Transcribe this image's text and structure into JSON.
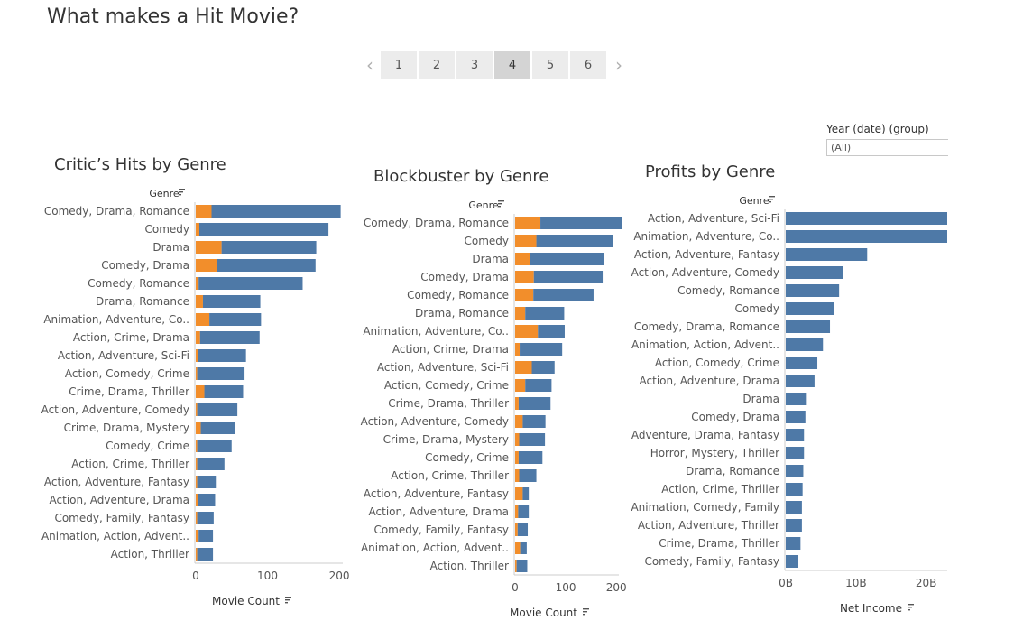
{
  "story": {
    "title": "What makes a Hit Movie?",
    "pages": [
      "1",
      "2",
      "3",
      "4",
      "5",
      "6"
    ],
    "active_page": "4",
    "prev_icon": "chevron-left-icon",
    "next_icon": "chevron-right-icon"
  },
  "filter": {
    "label": "Year (date) (group)",
    "value": "(All)"
  },
  "colors": {
    "blue": "#4e79a7",
    "orange": "#f28e2b",
    "axis": "#cccccc",
    "text": "#555555"
  },
  "chart_data": [
    {
      "type": "bar",
      "title": "Critic’s Hits by Genre",
      "ylabel": "Genre",
      "xlabel": "Movie Count",
      "xticks": [
        0,
        100,
        200
      ],
      "xlim": [
        0,
        205
      ],
      "stacked": true,
      "categories": [
        "Comedy, Drama, Romance",
        "Comedy",
        "Drama",
        "Comedy, Drama",
        "Comedy, Romance",
        "Drama, Romance",
        "Animation, Adventure, Co..",
        "Action, Crime, Drama",
        "Action, Adventure, Sci-Fi",
        "Action, Comedy, Crime",
        "Crime, Drama, Thriller",
        "Action, Adventure, Comedy",
        "Crime, Drama, Mystery",
        "Comedy, Crime",
        "Action, Crime, Thriller",
        "Action, Adventure, Fantasy",
        "Action, Adventure, Drama",
        "Comedy, Family, Fantasy",
        "Animation, Action, Advent..",
        "Action, Thriller"
      ],
      "series": [
        {
          "color": "#f28e2b",
          "values": [
            22,
            5,
            36,
            29,
            4,
            10,
            19,
            6,
            3,
            2,
            12,
            2,
            7,
            2,
            2,
            2,
            3,
            2,
            4,
            2
          ]
        },
        {
          "color": "#4e79a7",
          "values": [
            180,
            180,
            132,
            138,
            145,
            80,
            72,
            83,
            67,
            66,
            54,
            56,
            48,
            48,
            38,
            26,
            24,
            23,
            20,
            22
          ]
        }
      ]
    },
    {
      "type": "bar",
      "title": "Blockbuster by Genre",
      "ylabel": "Genre",
      "xlabel": "Movie Count",
      "xticks": [
        0,
        100,
        200
      ],
      "xlim": [
        0,
        205
      ],
      "stacked": true,
      "categories": [
        "Comedy, Drama, Romance",
        "Comedy",
        "Drama",
        "Comedy, Drama",
        "Comedy, Romance",
        "Drama, Romance",
        "Animation, Adventure, Co..",
        "Action, Crime, Drama",
        "Action, Adventure, Sci-Fi",
        "Action, Comedy, Crime",
        "Crime, Drama, Thriller",
        "Action, Adventure, Comedy",
        "Crime, Drama, Mystery",
        "Comedy, Crime",
        "Action, Crime, Thriller",
        "Action, Adventure, Fantasy",
        "Action, Adventure, Drama",
        "Comedy, Family, Fantasy",
        "Animation, Action, Advent..",
        "Action, Thriller"
      ],
      "series": [
        {
          "color": "#f28e2b",
          "values": [
            50,
            42,
            29,
            37,
            36,
            20,
            45,
            9,
            33,
            20,
            7,
            15,
            8,
            7,
            8,
            15,
            6,
            5,
            10,
            3
          ]
        },
        {
          "color": "#4e79a7",
          "values": [
            161,
            151,
            147,
            136,
            119,
            77,
            53,
            84,
            45,
            52,
            63,
            45,
            51,
            47,
            34,
            12,
            21,
            20,
            13,
            21
          ]
        }
      ]
    },
    {
      "type": "bar",
      "title": "Profits by Genre",
      "ylabel": "Genre",
      "xlabel": "Net Income",
      "xticks": [
        0,
        10,
        20
      ],
      "xtick_labels": [
        "0B",
        "10B",
        "20B"
      ],
      "xlim": [
        0,
        23
      ],
      "unit": "B",
      "categories": [
        "Action, Adventure, Sci-Fi",
        "Animation, Adventure, Co..",
        "Action, Adventure, Fantasy",
        "Action, Adventure, Comedy",
        "Comedy, Romance",
        "Comedy",
        "Comedy, Drama, Romance",
        "Animation, Action, Advent..",
        "Action, Comedy, Crime",
        "Action, Adventure, Drama",
        "Drama",
        "Comedy, Drama",
        "Adventure, Drama, Fantasy",
        "Horror, Mystery, Thriller",
        "Drama, Romance",
        "Action, Crime, Thriller",
        "Animation, Comedy, Family",
        "Action, Adventure, Thriller",
        "Crime, Drama, Thriller",
        "Comedy, Family, Fantasy"
      ],
      "series": [
        {
          "color": "#4e79a7",
          "values": [
            24,
            24,
            11.6,
            8.1,
            7.6,
            6.9,
            6.3,
            5.3,
            4.5,
            4.1,
            3.0,
            2.8,
            2.6,
            2.6,
            2.5,
            2.4,
            2.3,
            2.3,
            2.1,
            1.8
          ]
        }
      ]
    }
  ]
}
